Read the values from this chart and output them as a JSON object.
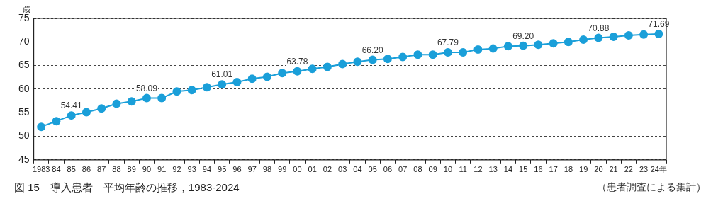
{
  "chart_data": {
    "type": "line",
    "title": "図 15　導入患者　平均年齢の推移，1983-2024",
    "ylabel": "歳",
    "annotations": [
      "（患者調査による集計）"
    ],
    "categories": [
      "1983",
      "84",
      "85",
      "86",
      "87",
      "88",
      "89",
      "90",
      "91",
      "92",
      "93",
      "94",
      "95",
      "96",
      "97",
      "98",
      "99",
      "00",
      "01",
      "02",
      "03",
      "04",
      "05",
      "06",
      "07",
      "08",
      "09",
      "10",
      "11",
      "12",
      "13",
      "14",
      "15",
      "16",
      "17",
      "18",
      "19",
      "20",
      "21",
      "22",
      "23",
      "24年"
    ],
    "series": [
      {
        "color": "#1a9fd9",
        "values": [
          52.0,
          53.2,
          54.41,
          55.1,
          55.9,
          56.9,
          57.4,
          58.09,
          58.1,
          59.5,
          59.8,
          60.4,
          61.01,
          61.5,
          62.2,
          62.6,
          63.4,
          63.78,
          64.3,
          64.7,
          65.3,
          65.8,
          66.2,
          66.4,
          66.8,
          67.3,
          67.3,
          67.79,
          67.8,
          68.4,
          68.6,
          69.1,
          69.2,
          69.4,
          69.7,
          70.0,
          70.5,
          70.88,
          71.1,
          71.4,
          71.6,
          71.69
        ],
        "value_labels": [
          null,
          null,
          "54.41",
          null,
          null,
          null,
          null,
          "58.09",
          null,
          null,
          null,
          null,
          "61.01",
          null,
          null,
          null,
          null,
          "63.78",
          null,
          null,
          null,
          null,
          "66.20",
          null,
          null,
          null,
          null,
          "67.79",
          null,
          null,
          null,
          null,
          "69.20",
          null,
          null,
          null,
          null,
          "70.88",
          null,
          null,
          null,
          "71.69"
        ]
      }
    ],
    "ylim": [
      45,
      75
    ],
    "yticks": [
      45,
      50,
      55,
      60,
      65,
      70,
      75
    ],
    "grid": "y",
    "legend": false,
    "marker": "circle",
    "line_style": "solid"
  }
}
